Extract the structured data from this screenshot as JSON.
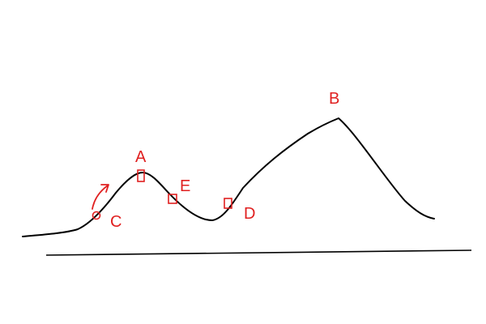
{
  "colors": {
    "curve": "#000000",
    "ground": "#000000",
    "marker": "#e02020"
  },
  "labels": {
    "A": "A",
    "B": "B",
    "C": "C",
    "D": "D",
    "E": "E"
  },
  "icons": {
    "marker_square": "square-marker-icon",
    "marker_circle": "circle-marker-icon",
    "direction_arrow": "curved-arrow-icon"
  }
}
